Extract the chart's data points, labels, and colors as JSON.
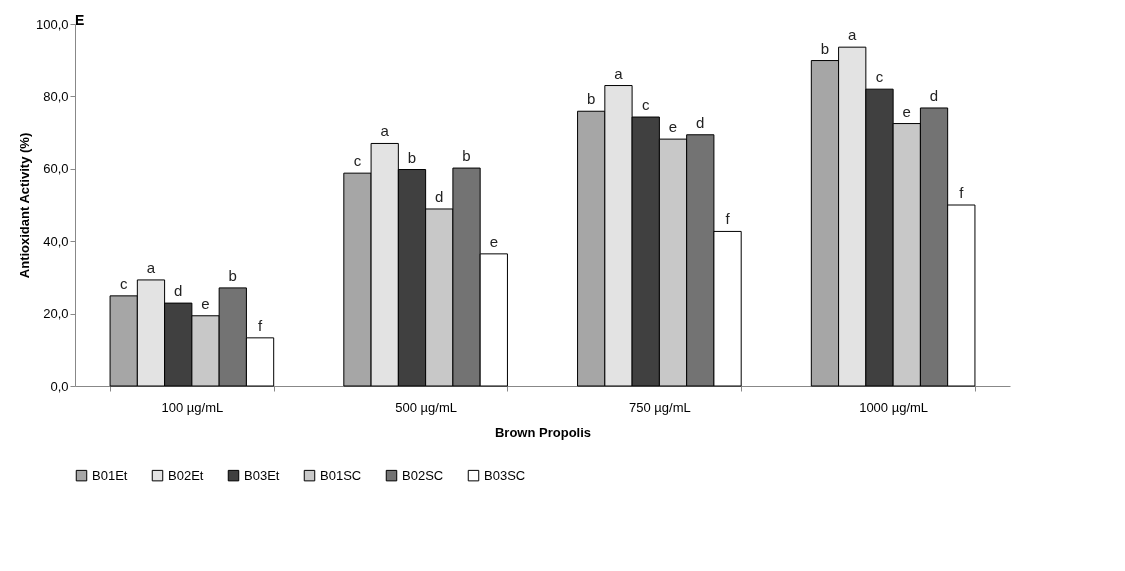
{
  "chart_data": {
    "type": "bar",
    "title": "E",
    "xlabel": "Brown Propolis",
    "ylabel": "Antioxidant Activity (%)",
    "categories": [
      "100 µg/mL",
      "500  µg/mL",
      "750  µg/mL",
      "1000  µg/mL"
    ],
    "series": [
      {
        "name": "B01Et",
        "color": "#a6a6a6",
        "values": [
          24.9,
          58.8,
          75.9,
          89.9
        ],
        "value_labels": [
          "c",
          "c",
          "b",
          "b"
        ]
      },
      {
        "name": "B02Et",
        "color": "#e3e3e3",
        "values": [
          29.3,
          67.0,
          83.0,
          93.6
        ],
        "value_labels": [
          "a",
          "a",
          "a",
          "a"
        ]
      },
      {
        "name": "B03Et",
        "color": "#404040",
        "values": [
          22.9,
          59.8,
          74.3,
          82.0
        ],
        "value_labels": [
          "d",
          "b",
          "c",
          "c"
        ]
      },
      {
        "name": "B01SC",
        "color": "#c8c8c8",
        "values": [
          19.4,
          48.9,
          68.2,
          72.5
        ],
        "value_labels": [
          "e",
          "d",
          "e",
          "e"
        ]
      },
      {
        "name": "B02SC",
        "color": "#737373",
        "values": [
          27.1,
          60.2,
          69.4,
          76.8
        ],
        "value_labels": [
          "b",
          "b",
          "d",
          "d"
        ]
      },
      {
        "name": "B03SC",
        "color": "#ffffff",
        "values": [
          13.3,
          36.5,
          42.7,
          50.0
        ],
        "value_labels": [
          "f",
          "e",
          "f",
          "f"
        ]
      }
    ],
    "ylim": [
      0,
      100
    ],
    "yticks": [
      {
        "value": 0,
        "label": "0,0"
      },
      {
        "value": 20,
        "label": "20,0"
      },
      {
        "value": 40,
        "label": "40,0"
      },
      {
        "value": 60,
        "label": "60,0"
      },
      {
        "value": 80,
        "label": "80,0"
      },
      {
        "value": 100,
        "label": "100,0"
      }
    ],
    "grid": false,
    "legend": "bottom"
  }
}
